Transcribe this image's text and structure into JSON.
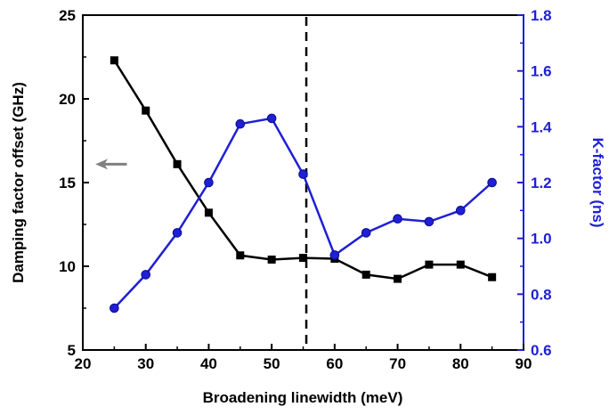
{
  "chart_data": {
    "type": "line",
    "xlabel": "Broadening linewidth (meV)",
    "ylabel_left": "Damping factor offset (GHz)",
    "ylabel_right": "K-factor (ns)",
    "xlim": [
      20,
      90
    ],
    "ylim_left": [
      5,
      25
    ],
    "ylim_right": [
      0.6,
      1.8
    ],
    "x_ticks": [
      "20",
      "30",
      "40",
      "50",
      "60",
      "70",
      "80",
      "90"
    ],
    "y_left_ticks": [
      "5",
      "10",
      "15",
      "20",
      "25"
    ],
    "y_right_ticks": [
      "0.6",
      "0.8",
      "1.0",
      "1.2",
      "1.4",
      "1.6",
      "1.8"
    ],
    "grid": false,
    "vertical_reference_line_x": 55.5,
    "arrow": {
      "from_x": 27,
      "to_x": 22,
      "y_left": 16.1,
      "color": "#808080"
    },
    "colors": {
      "left_axis": "#000000",
      "right_axis": "#1f1fd6",
      "arrow": "#808080"
    },
    "series": [
      {
        "axis": "left",
        "marker": "square",
        "color": "#000000",
        "x": [
          25,
          30,
          35,
          40,
          45,
          50,
          55,
          60,
          65,
          70,
          75,
          80,
          85
        ],
        "values": [
          22.3,
          19.3,
          16.1,
          13.2,
          10.65,
          10.4,
          10.5,
          10.45,
          9.5,
          9.25,
          10.1,
          10.1,
          9.35
        ]
      },
      {
        "axis": "right",
        "marker": "circle",
        "color": "#1f1fd6",
        "x": [
          25,
          30,
          35,
          40,
          45,
          50,
          55,
          60,
          65,
          70,
          75,
          80,
          85
        ],
        "values": [
          0.75,
          0.87,
          1.02,
          1.2,
          1.41,
          1.43,
          1.23,
          0.94,
          1.02,
          1.07,
          1.06,
          1.1,
          1.2
        ]
      }
    ]
  }
}
